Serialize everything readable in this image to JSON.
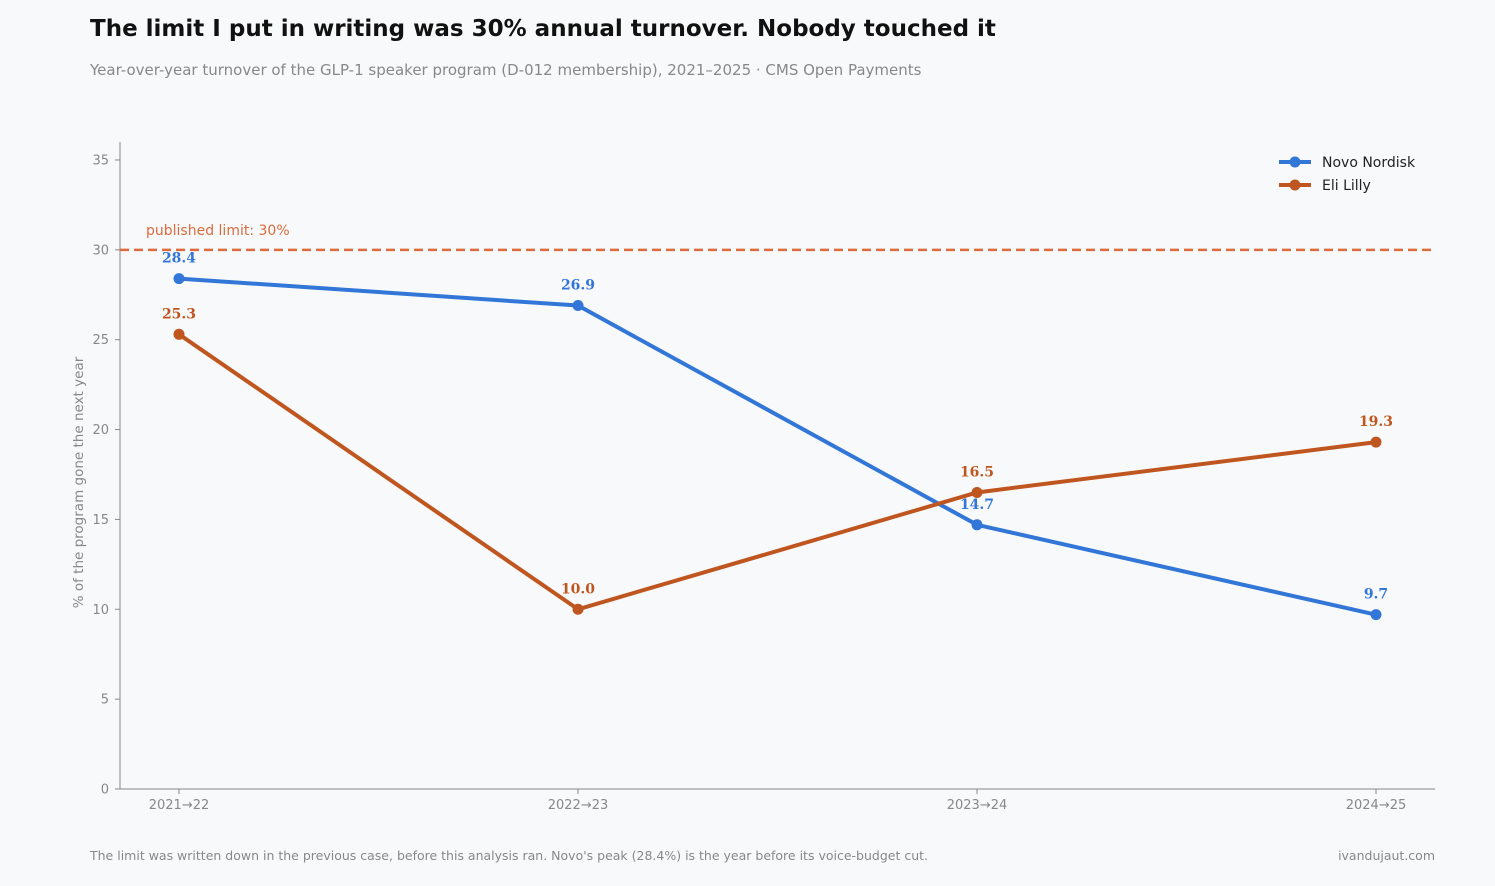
{
  "header": {
    "title": "The limit I put in writing was 30% annual turnover. Nobody touched it",
    "subtitle": "Year-over-year turnover of the GLP-1 speaker program (D-012 membership), 2021–2025 · CMS Open Payments"
  },
  "footer": {
    "note": "The limit was written down in the previous case, before this analysis ran. Novo's peak (28.4%) is the year before its voice-budget cut.",
    "credit": "ivandujaut.com"
  },
  "chart_data": {
    "type": "line",
    "title": "",
    "xlabel": "",
    "ylabel": "% of the program gone the next year",
    "categories": [
      "2021→22",
      "2022→23",
      "2023→24",
      "2024→25"
    ],
    "ylim": [
      0,
      36
    ],
    "yticks": [
      0,
      5,
      10,
      15,
      20,
      25,
      30,
      35
    ],
    "grid": false,
    "legend_position": "top-right",
    "series": [
      {
        "name": "Novo Nordisk",
        "color": "#3276d8",
        "values": [
          28.4,
          26.9,
          14.7,
          9.7
        ],
        "labels": [
          "28.4",
          "26.9",
          "14.7",
          "9.7"
        ]
      },
      {
        "name": "Eli Lilly",
        "color": "#c0561f",
        "values": [
          25.3,
          10.0,
          16.5,
          19.3
        ],
        "labels": [
          "25.3",
          "10.0",
          "16.5",
          "19.3"
        ]
      }
    ],
    "reference_line": {
      "value": 30,
      "label": "published limit: 30%",
      "color": "#dd6b3d"
    }
  }
}
